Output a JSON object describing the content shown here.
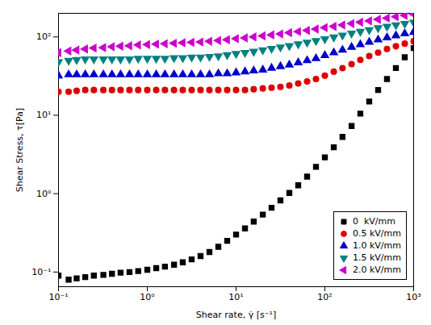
{
  "chart_data": {
    "type": "scatter",
    "xlabel": "Shear rate, γ̇ [s⁻¹]",
    "ylabel": "Shear Stress, τ[Pa]",
    "log": true,
    "grid": false,
    "legend": "lower right",
    "xlim": [
      0.1,
      1000
    ],
    "ylim": [
      0.065,
      200
    ],
    "xticks": [
      {
        "value": 0.1,
        "label": "10⁻¹"
      },
      {
        "value": 1,
        "label": "10⁰"
      },
      {
        "value": 10,
        "label": "10¹"
      },
      {
        "value": 100,
        "label": "10²"
      },
      {
        "value": 1000,
        "label": "10³"
      }
    ],
    "yticks": [
      {
        "value": 0.1,
        "label": "10⁻¹"
      },
      {
        "value": 1,
        "label": "10⁰"
      },
      {
        "value": 10,
        "label": "10¹"
      },
      {
        "value": 100,
        "label": "10²"
      }
    ],
    "series": [
      {
        "name": "0  kV/mm",
        "color": "black",
        "marker": "square",
        "x": [
          0.1,
          0.13,
          0.16,
          0.2,
          0.25,
          0.32,
          0.4,
          0.5,
          0.63,
          0.79,
          1.0,
          1.26,
          1.58,
          2.0,
          2.51,
          3.16,
          3.98,
          5.01,
          6.31,
          7.94,
          10.0,
          12.6,
          15.8,
          20.0,
          25.1,
          31.6,
          39.8,
          50.1,
          63.1,
          79.4,
          100,
          126,
          158,
          200,
          251,
          316,
          398,
          501,
          631,
          794,
          1000
        ],
        "values": [
          0.09,
          0.08,
          0.083,
          0.086,
          0.09,
          0.092,
          0.095,
          0.098,
          0.1,
          0.103,
          0.107,
          0.112,
          0.117,
          0.124,
          0.133,
          0.145,
          0.16,
          0.18,
          0.21,
          0.25,
          0.3,
          0.36,
          0.44,
          0.54,
          0.66,
          0.82,
          1.02,
          1.28,
          1.65,
          2.2,
          2.9,
          3.9,
          5.3,
          7.3,
          10.5,
          15.0,
          21.0,
          29.0,
          40.0,
          55.0,
          72.0
        ]
      },
      {
        "name": "0.5 kV/mm",
        "color": "#dd0000",
        "marker": "circle",
        "x": [
          0.1,
          0.13,
          0.16,
          0.2,
          0.25,
          0.32,
          0.4,
          0.5,
          0.63,
          0.79,
          1.0,
          1.26,
          1.58,
          2.0,
          2.51,
          3.16,
          3.98,
          5.01,
          6.31,
          7.94,
          10.0,
          12.6,
          15.8,
          20.0,
          25.1,
          31.6,
          39.8,
          50.1,
          63.1,
          79.4,
          100,
          126,
          158,
          200,
          251,
          316,
          398,
          501,
          631,
          794,
          1000
        ],
        "values": [
          20,
          20,
          20.5,
          21,
          21,
          21,
          21,
          21,
          21,
          21,
          21,
          21,
          21,
          21,
          21,
          21,
          21,
          21,
          21,
          21,
          21,
          21,
          21.5,
          22,
          22.5,
          23,
          24,
          25.5,
          27,
          29,
          32,
          36,
          40,
          45,
          51,
          57,
          63,
          70,
          76,
          82,
          88
        ]
      },
      {
        "name": "1.0 kV/mm",
        "color": "#0000cc",
        "marker": "triangle-up",
        "x": [
          0.1,
          0.13,
          0.16,
          0.2,
          0.25,
          0.32,
          0.4,
          0.5,
          0.63,
          0.79,
          1.0,
          1.26,
          1.58,
          2.0,
          2.51,
          3.16,
          3.98,
          5.01,
          6.31,
          7.94,
          10.0,
          12.6,
          15.8,
          20.0,
          25.1,
          31.6,
          39.8,
          50.1,
          63.1,
          79.4,
          100,
          126,
          158,
          200,
          251,
          316,
          398,
          501,
          631,
          794,
          1000
        ],
        "values": [
          32,
          33,
          33,
          33,
          33,
          33,
          33,
          33,
          33,
          33,
          33,
          33,
          33,
          33,
          33,
          33,
          33,
          33,
          34,
          34,
          35,
          36,
          37,
          38,
          40,
          42,
          44,
          47,
          50,
          53,
          58,
          63,
          68,
          74,
          80,
          86,
          92,
          98,
          104,
          110,
          115
        ]
      },
      {
        "name": "1.5 kV/mm",
        "color": "#008080",
        "marker": "triangle-down",
        "x": [
          0.1,
          0.13,
          0.16,
          0.2,
          0.25,
          0.32,
          0.4,
          0.5,
          0.63,
          0.79,
          1.0,
          1.26,
          1.58,
          2.0,
          2.51,
          3.16,
          3.98,
          5.01,
          6.31,
          7.94,
          10.0,
          12.6,
          15.8,
          20.0,
          25.1,
          31.6,
          39.8,
          50.1,
          63.1,
          79.4,
          100,
          126,
          158,
          200,
          251,
          316,
          398,
          501,
          631,
          794,
          1000
        ],
        "values": [
          48,
          50,
          51,
          52,
          52,
          52,
          52,
          52,
          52,
          53,
          53,
          53,
          53,
          54,
          54,
          55,
          55,
          56,
          57,
          59,
          61,
          63,
          65,
          68,
          71,
          74,
          77,
          81,
          85,
          89,
          94,
          99,
          105,
          111,
          117,
          123,
          130,
          136,
          142,
          148,
          153
        ]
      },
      {
        "name": "2.0 kV/mm",
        "color": "#cc00cc",
        "marker": "triangle-left",
        "x": [
          0.1,
          0.13,
          0.16,
          0.2,
          0.25,
          0.32,
          0.4,
          0.5,
          0.63,
          0.79,
          1.0,
          1.26,
          1.58,
          2.0,
          2.51,
          3.16,
          3.98,
          5.01,
          6.31,
          7.94,
          10.0,
          12.6,
          15.8,
          20.0,
          25.1,
          31.6,
          39.8,
          50.1,
          63.1,
          79.4,
          100,
          126,
          158,
          200,
          251,
          316,
          398,
          501,
          631,
          794,
          1000
        ],
        "values": [
          63,
          66,
          68,
          70,
          72,
          73,
          75,
          76,
          77,
          79,
          80,
          81,
          82,
          83,
          84,
          85,
          86,
          88,
          90,
          92,
          95,
          97,
          100,
          103,
          106,
          109,
          113,
          117,
          121,
          126,
          131,
          136,
          142,
          148,
          154,
          160,
          167,
          174,
          181,
          188,
          195
        ]
      }
    ]
  }
}
